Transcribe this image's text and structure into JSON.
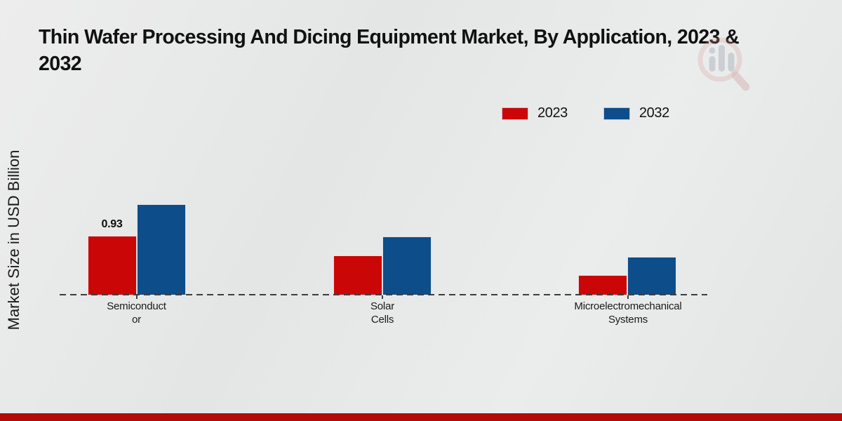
{
  "page": {
    "title_line1": "Thin Wafer Processing And Dicing Equipment Market, By Application, 2023 &",
    "title_line2": "2032"
  },
  "chart_data": {
    "type": "bar",
    "title": "Thin Wafer Processing And Dicing Equipment Market, By Application, 2023 & 2032",
    "ylabel": "Market Size in USD Billion",
    "xlabel": "",
    "categories": [
      "Semiconductor",
      "Solar Cells",
      "Microelectromechanical Systems"
    ],
    "category_display": [
      [
        "Semiconduct",
        "or"
      ],
      [
        "Solar",
        "Cells"
      ],
      [
        "Microelectromechanical",
        "Systems"
      ]
    ],
    "series": [
      {
        "name": "2023",
        "color": "#cb0606",
        "values": [
          0.93,
          0.62,
          0.31
        ]
      },
      {
        "name": "2032",
        "color": "#0d4d8a",
        "values": [
          1.43,
          0.92,
          0.6
        ]
      }
    ],
    "annotations": [
      {
        "text": "0.93",
        "target": "2023 Semiconductor"
      }
    ],
    "ylim": [
      0,
      1.6
    ],
    "grid": false,
    "legend_position": "top-right",
    "baseline_style": "dashed"
  },
  "colors": {
    "bar_2023": "#cb0606",
    "bar_2032": "#0d4d8a",
    "footer_strip": "#b30a0a",
    "axis_line": "#3d3d3d",
    "text": "#111111",
    "background": "#e8e9e9"
  },
  "branding": {
    "watermark_icon": "magnifier-bar-chart-logo"
  }
}
